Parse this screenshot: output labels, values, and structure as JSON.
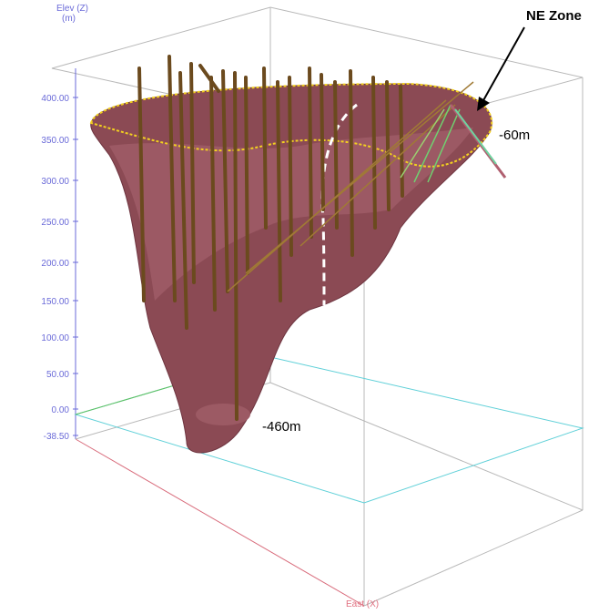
{
  "axis_label": "Elev (Z)",
  "axis_unit": "(m)",
  "elevation_ticks": [
    "400.00",
    "350.00",
    "300.00",
    "250.00",
    "200.00",
    "150.00",
    "100.00",
    "50.00",
    "0.00",
    "-38.50"
  ],
  "x_axis_label": "East (X)",
  "annotations": [
    "NE Zone",
    "-60m",
    "-460m"
  ]
}
